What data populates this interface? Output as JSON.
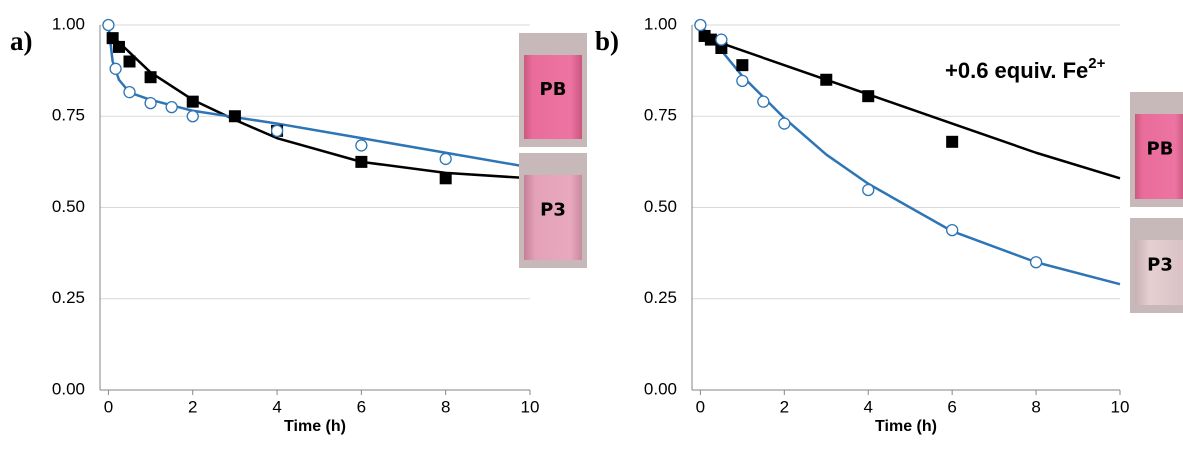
{
  "chart_data": [
    {
      "type": "scatter",
      "panel_label": "a)",
      "xlabel": "Time (h)",
      "xlim": [
        -0.2,
        10
      ],
      "ylim": [
        0,
        1
      ],
      "xticks": [
        0,
        2,
        4,
        6,
        8,
        10
      ],
      "yticks": [
        {
          "value": 0,
          "label": "0.00"
        },
        {
          "value": 0.25,
          "label": "0.25"
        },
        {
          "value": 0.5,
          "label": "0.50"
        },
        {
          "value": 0.75,
          "label": "0.75"
        },
        {
          "value": 1,
          "label": "1.00"
        }
      ],
      "grid": true,
      "series": [
        {
          "marker": "line",
          "color": "#000000",
          "x": [
            0,
            1,
            2,
            3,
            4,
            6,
            8,
            10
          ],
          "values": [
            0.98,
            0.87,
            0.795,
            0.74,
            0.69,
            0.625,
            0.595,
            0.58
          ]
        },
        {
          "marker": "line",
          "color": "#2e75b6",
          "x": [
            0,
            0.1,
            0.25,
            0.5,
            1,
            2,
            4,
            6,
            8,
            10
          ],
          "values": [
            1.0,
            0.9,
            0.85,
            0.815,
            0.795,
            0.765,
            0.73,
            0.69,
            0.65,
            0.61
          ]
        },
        {
          "marker": "square",
          "color": "#000000",
          "x": [
            0.1,
            0.25,
            0.5,
            1,
            2,
            3,
            4,
            6,
            8
          ],
          "values": [
            0.964,
            0.94,
            0.9,
            0.857,
            0.79,
            0.75,
            0.71,
            0.625,
            0.58
          ]
        },
        {
          "marker": "circle",
          "color": "#2e75b6",
          "x": [
            0,
            0.17,
            0.5,
            1,
            1.5,
            2,
            4,
            6,
            8
          ],
          "values": [
            1.0,
            0.88,
            0.816,
            0.786,
            0.775,
            0.75,
            0.71,
            0.67,
            0.633
          ]
        }
      ],
      "vials": [
        {
          "label": "PB"
        },
        {
          "label": "P3"
        }
      ]
    },
    {
      "type": "scatter",
      "panel_label": "b)",
      "xlabel": "Time (h)",
      "xlim": [
        -0.2,
        10
      ],
      "ylim": [
        0,
        1
      ],
      "xticks": [
        0,
        2,
        4,
        6,
        8,
        10
      ],
      "yticks": [
        {
          "value": 0,
          "label": "0.00"
        },
        {
          "value": 0.25,
          "label": "0.25"
        },
        {
          "value": 0.5,
          "label": "0.50"
        },
        {
          "value": 0.75,
          "label": "0.75"
        },
        {
          "value": 1,
          "label": "1.00"
        }
      ],
      "grid": true,
      "annotation": {
        "text": "+0.6 equiv. Fe",
        "superscript": "2+"
      },
      "series": [
        {
          "marker": "line",
          "color": "#000000",
          "x": [
            0,
            2,
            4,
            6,
            8,
            10
          ],
          "values": [
            0.97,
            0.89,
            0.81,
            0.73,
            0.65,
            0.58
          ]
        },
        {
          "marker": "line",
          "color": "#2e75b6",
          "x": [
            0,
            1,
            2,
            3,
            4,
            6,
            8,
            10
          ],
          "values": [
            1.0,
            0.86,
            0.745,
            0.645,
            0.565,
            0.435,
            0.35,
            0.29
          ]
        },
        {
          "marker": "square",
          "color": "#000000",
          "x": [
            0.1,
            0.25,
            0.5,
            1,
            3,
            4,
            6
          ],
          "values": [
            0.97,
            0.96,
            0.937,
            0.89,
            0.85,
            0.805,
            0.68
          ]
        },
        {
          "marker": "circle",
          "color": "#2e75b6",
          "x": [
            0,
            0.5,
            1,
            1.5,
            2,
            4,
            6,
            8
          ],
          "values": [
            1.0,
            0.96,
            0.847,
            0.79,
            0.73,
            0.548,
            0.438,
            0.35
          ]
        }
      ],
      "vials": [
        {
          "label": "PB"
        },
        {
          "label": "P3"
        }
      ]
    }
  ]
}
